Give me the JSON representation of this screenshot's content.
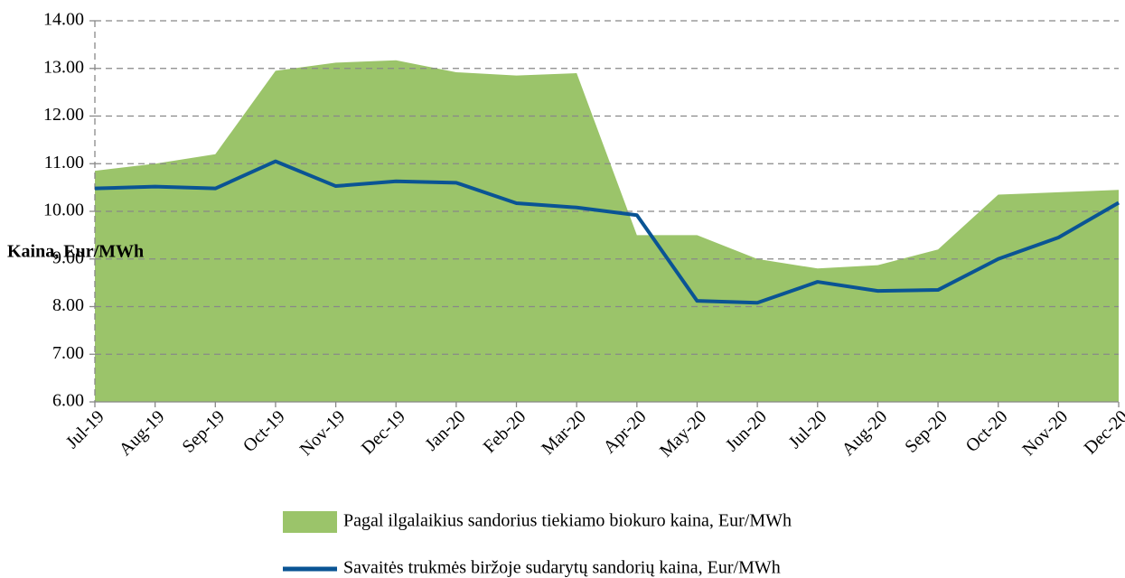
{
  "chart_data": {
    "type": "area-line",
    "y_label": "Kaina, Eur/MWh",
    "categories": [
      "Jul-19",
      "Aug-19",
      "Sep-19",
      "Oct-19",
      "Nov-19",
      "Dec-19",
      "Jan-20",
      "Feb-20",
      "Mar-20",
      "Apr-20",
      "May-20",
      "Jun-20",
      "Jul-20",
      "Aug-20",
      "Sep-20",
      "Oct-20",
      "Nov-20",
      "Dec-20"
    ],
    "series": [
      {
        "name": "Pagal ilgalaikius sandorius tiekiamo biokuro kaina, Eur/MWh",
        "kind": "area",
        "color": "#9bc46a",
        "values": [
          10.85,
          11.0,
          11.2,
          12.95,
          13.12,
          13.17,
          12.92,
          12.85,
          12.9,
          9.5,
          9.5,
          9.0,
          8.8,
          8.87,
          9.2,
          10.35,
          10.4,
          10.45
        ]
      },
      {
        "name": "Savaitės trukmės biržoje sudarytų sandorių kaina, Eur/MWh",
        "kind": "line",
        "color": "#0a5494",
        "values": [
          10.48,
          10.52,
          10.48,
          11.05,
          10.53,
          10.63,
          10.6,
          10.17,
          10.08,
          9.92,
          8.12,
          8.08,
          8.52,
          8.33,
          8.35,
          9.0,
          9.45,
          10.18
        ]
      }
    ],
    "ylim": [
      6,
      14
    ],
    "yticks": [
      {
        "value": 6,
        "label": "6.00"
      },
      {
        "value": 7,
        "label": "7.00"
      },
      {
        "value": 8,
        "label": "8.00"
      },
      {
        "value": 9,
        "label": "9.00"
      },
      {
        "value": 10,
        "label": "10.00"
      },
      {
        "value": 11,
        "label": "11.00"
      },
      {
        "value": 12,
        "label": "12.00"
      },
      {
        "value": 13,
        "label": "13.00"
      },
      {
        "value": 14,
        "label": "14.00"
      }
    ],
    "grid": true
  }
}
